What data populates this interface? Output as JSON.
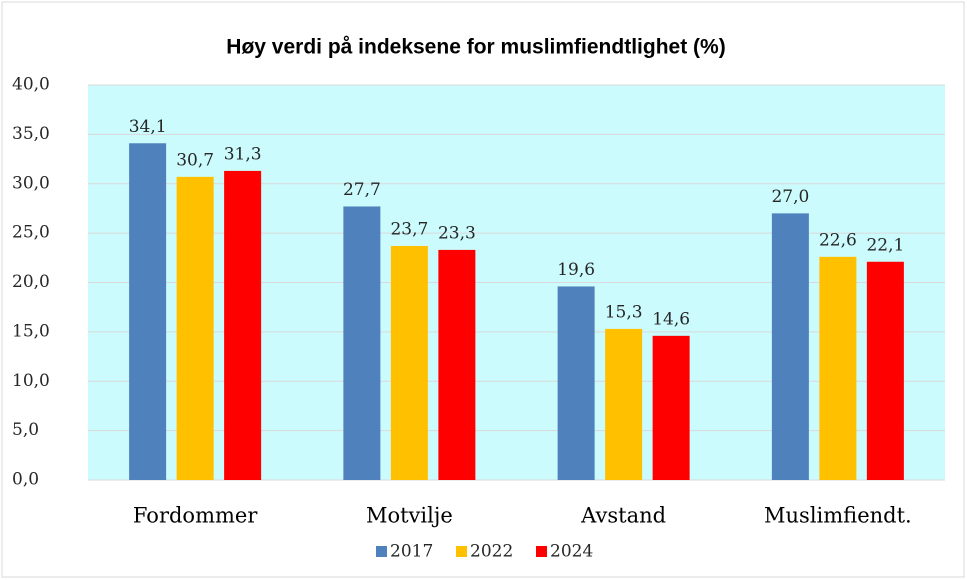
{
  "chart_data": {
    "type": "bar",
    "title": "Høy verdi på indeksene for muslimfiendtlighet (%)",
    "categories": [
      "Fordommer",
      "Motvilje",
      "Avstand",
      "Muslimfiendt."
    ],
    "series": [
      {
        "name": "2017",
        "color": "#4f81bd",
        "values": [
          34.1,
          27.7,
          19.6,
          27.0
        ],
        "value_labels": [
          "34,1",
          "27,7",
          "19,6",
          "27,0"
        ]
      },
      {
        "name": "2022",
        "color": "#ffc000",
        "values": [
          30.7,
          23.7,
          15.3,
          22.6
        ],
        "value_labels": [
          "30,7",
          "23,7",
          "15,3",
          "22,6"
        ]
      },
      {
        "name": "2024",
        "color": "#ff0000",
        "values": [
          31.3,
          23.3,
          14.6,
          22.1
        ],
        "value_labels": [
          "31,3",
          "23,3",
          "14,6",
          "22,1"
        ]
      }
    ],
    "ylim": [
      0,
      40
    ],
    "yticks": [
      {
        "value": 0,
        "label": "0,0"
      },
      {
        "value": 5,
        "label": "5,0"
      },
      {
        "value": 10,
        "label": "10,0"
      },
      {
        "value": 15,
        "label": "15,0"
      },
      {
        "value": 20,
        "label": "20,0"
      },
      {
        "value": 25,
        "label": "25,0"
      },
      {
        "value": 30,
        "label": "30,0"
      },
      {
        "value": 35,
        "label": "35,0"
      },
      {
        "value": 40,
        "label": "40,0"
      }
    ],
    "grid": true,
    "legend": "bottom"
  }
}
